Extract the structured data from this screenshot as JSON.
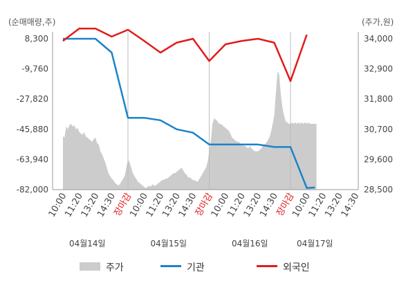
{
  "chart_data": {
    "type": "line",
    "left_axis": {
      "unit_label": "(순매매량,주)",
      "ticks": [
        8300,
        -9760,
        -27820,
        -45880,
        -63940,
        -82000
      ],
      "tick_labels": [
        "8,300",
        "-9,760",
        "-27,820",
        "-45,880",
        "-63,940",
        "-82,000"
      ],
      "range": [
        -82000,
        8300
      ]
    },
    "right_axis": {
      "unit_label": "(주가,원)",
      "ticks": [
        34000,
        32900,
        31800,
        30700,
        29600,
        28500
      ],
      "tick_labels": [
        "34,000",
        "32,900",
        "31,800",
        "30,700",
        "29,600",
        "28,500"
      ],
      "range": [
        28500,
        34000
      ]
    },
    "x_labels": [
      "10:00",
      "11:20",
      "13:20",
      "14:30",
      "장마감",
      "10:00",
      "11:20",
      "13:20",
      "14:30",
      "장마감",
      "10:00",
      "11:20",
      "13:20",
      "14:30",
      "장마감",
      "10:00",
      "11:20",
      "13:20",
      "14:30"
    ],
    "x_label_colors": [
      "#444444",
      "#444444",
      "#444444",
      "#444444",
      "#e21a1a",
      "#444444",
      "#444444",
      "#444444",
      "#444444",
      "#e21a1a",
      "#444444",
      "#444444",
      "#444444",
      "#444444",
      "#e21a1a",
      "#444444",
      "#444444",
      "#444444",
      "#444444"
    ],
    "date_labels": [
      "04월14일",
      "04월15일",
      "04월16일",
      "04월17일"
    ],
    "date_label_x_index": [
      1.5,
      6.5,
      11.5,
      15.5
    ],
    "day_dividers_x_index": [
      4,
      9,
      14
    ],
    "series": [
      {
        "name": "주가",
        "axis": "right",
        "kind": "area",
        "color": "#cccccc",
        "x": [
          0,
          0.1,
          0.2,
          0.3,
          0.4,
          0.5,
          0.6,
          0.7,
          0.8,
          0.9,
          1.0,
          1.1,
          1.2,
          1.3,
          1.4,
          1.5,
          1.6,
          1.7,
          1.8,
          1.9,
          2.0,
          2.1,
          2.2,
          2.3,
          2.4,
          2.5,
          2.6,
          2.7,
          2.8,
          2.9,
          3.0,
          3.1,
          3.2,
          3.3,
          3.4,
          3.5,
          3.6,
          3.7,
          3.8,
          3.9,
          4.0,
          4.1,
          4.2,
          4.3,
          4.4,
          4.5,
          4.6,
          4.7,
          4.8,
          4.9,
          5.0,
          5.1,
          5.2,
          5.3,
          5.4,
          5.5,
          5.6,
          5.7,
          5.8,
          5.9,
          6.0,
          6.1,
          6.2,
          6.3,
          6.4,
          6.5,
          6.6,
          6.7,
          6.8,
          6.9,
          7.0,
          7.1,
          7.2,
          7.3,
          7.4,
          7.5,
          7.6,
          7.7,
          7.8,
          7.9,
          8.0,
          8.1,
          8.2,
          8.3,
          8.4,
          8.5,
          8.6,
          8.7,
          8.8,
          8.9,
          9.0,
          9.1,
          9.2,
          9.3,
          9.4,
          9.5,
          9.6,
          9.7,
          9.8,
          9.9,
          10.0,
          10.1,
          10.2,
          10.3,
          10.4,
          10.5,
          10.6,
          10.7,
          10.8,
          10.9,
          11.0,
          11.1,
          11.2,
          11.3,
          11.4,
          11.5,
          11.6,
          11.7,
          11.8,
          11.9,
          12.0,
          12.1,
          12.2,
          12.3,
          12.4,
          12.5,
          12.6,
          12.7,
          12.8,
          12.9,
          13.0,
          13.1,
          13.2,
          13.3,
          13.4,
          13.5,
          13.6,
          13.7,
          13.8,
          13.9,
          14.0,
          14.1,
          14.2,
          14.3,
          14.4,
          14.5,
          14.6,
          14.7,
          14.8,
          14.9,
          15.0,
          15.1,
          15.2,
          15.3,
          15.4,
          15.5,
          15.6
        ],
        "values": [
          30450,
          30400,
          30800,
          30700,
          30850,
          30900,
          30800,
          30850,
          30700,
          30750,
          30600,
          30550,
          30500,
          30600,
          30450,
          30400,
          30350,
          30300,
          30250,
          30350,
          30400,
          30200,
          30150,
          29900,
          29800,
          29650,
          29500,
          29300,
          29100,
          29000,
          28900,
          28850,
          28750,
          28700,
          28650,
          28700,
          28800,
          28900,
          29000,
          29300,
          29600,
          29500,
          29300,
          29100,
          29000,
          28900,
          28800,
          28750,
          28700,
          28650,
          28600,
          28550,
          28600,
          28650,
          28600,
          28700,
          28650,
          28650,
          28700,
          28750,
          28800,
          28850,
          28850,
          28900,
          28900,
          28950,
          29000,
          29050,
          29100,
          29100,
          29150,
          29200,
          29250,
          29300,
          29200,
          29100,
          29050,
          28950,
          28950,
          28900,
          28850,
          28850,
          28800,
          28800,
          28900,
          29000,
          29100,
          29200,
          29300,
          29500,
          29900,
          30300,
          30900,
          31100,
          31050,
          31000,
          30900,
          30900,
          30850,
          30800,
          30750,
          30700,
          30650,
          30550,
          30400,
          30350,
          30300,
          30250,
          30250,
          30200,
          30150,
          30100,
          30100,
          30050,
          30000,
          30100,
          30000,
          29950,
          29900,
          29900,
          29900,
          29950,
          30000,
          30100,
          30150,
          30200,
          30300,
          30400,
          30600,
          30900,
          31200,
          32000,
          32800,
          32700,
          32000,
          31500,
          31200,
          31000,
          30950,
          30900,
          30900,
          30950,
          30900,
          30950,
          30900,
          30950,
          30900,
          30950,
          30900,
          30950,
          30900,
          30950,
          30900,
          30900,
          30900,
          30900,
          30900
        ]
      },
      {
        "name": "기관",
        "axis": "left",
        "kind": "line",
        "color": "#1a82c8",
        "x": [
          0,
          1,
          2,
          3,
          4,
          5,
          6,
          7,
          8,
          9,
          10,
          11,
          12,
          13,
          14,
          15,
          15.5
        ],
        "values": [
          8300,
          8300,
          8300,
          0,
          -39000,
          -39000,
          -40500,
          -45900,
          -47900,
          -55000,
          -55000,
          -55000,
          -55000,
          -56500,
          -56500,
          -81000,
          -80700
        ]
      },
      {
        "name": "외국인",
        "axis": "left",
        "kind": "line",
        "color": "#e21a1a",
        "x": [
          0,
          1,
          2,
          3,
          4,
          5,
          6,
          7,
          8,
          9,
          10,
          11,
          12,
          13,
          14,
          15
        ],
        "values": [
          7000,
          14400,
          14400,
          9600,
          13700,
          7000,
          0,
          6000,
          8300,
          -5000,
          5000,
          7000,
          8300,
          6000,
          -17000,
          10700
        ]
      }
    ],
    "legend": {
      "placement": "bottom-center",
      "items": [
        {
          "label": "주가",
          "color": "#cccccc",
          "kind": "box"
        },
        {
          "label": "기관",
          "color": "#1a82c8",
          "kind": "line"
        },
        {
          "label": "외국인",
          "color": "#e21a1a",
          "kind": "line"
        }
      ]
    },
    "grid": false
  }
}
